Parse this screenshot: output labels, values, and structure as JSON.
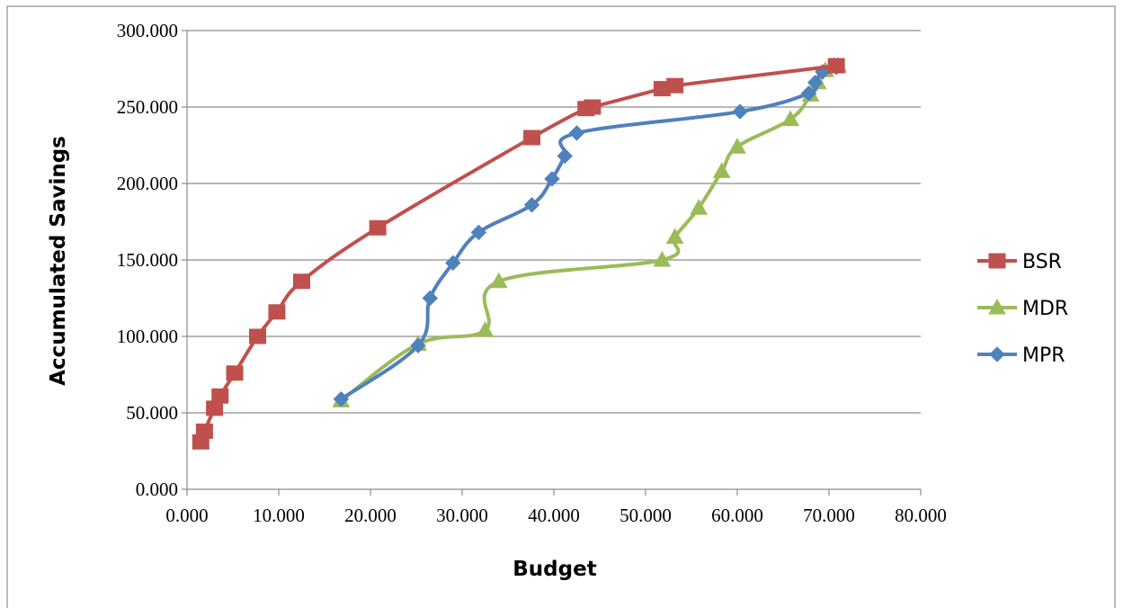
{
  "chart_data": {
    "type": "line",
    "xlabel": "Budget",
    "ylabel": "Accumulated Savings",
    "xlim": [
      0,
      80
    ],
    "ylim": [
      0,
      300
    ],
    "x_ticks": [
      "0.000",
      "10.000",
      "20.000",
      "30.000",
      "40.000",
      "50.000",
      "60.000",
      "70.000",
      "80.000"
    ],
    "y_ticks": [
      "0.000",
      "50.000",
      "100.000",
      "150.000",
      "200.000",
      "250.000",
      "300.000"
    ],
    "grid": "horizontal",
    "legend_position": "right",
    "series": [
      {
        "name": "BSR",
        "color": "#c0504d",
        "marker": "square",
        "points": [
          [
            1.5,
            31
          ],
          [
            1.9,
            38
          ],
          [
            3.0,
            53
          ],
          [
            3.6,
            61
          ],
          [
            5.2,
            76
          ],
          [
            7.7,
            100
          ],
          [
            9.8,
            116
          ],
          [
            12.5,
            136
          ],
          [
            20.8,
            171
          ],
          [
            37.6,
            230
          ],
          [
            43.5,
            249
          ],
          [
            44.2,
            250
          ],
          [
            51.8,
            262
          ],
          [
            53.2,
            264
          ],
          [
            70.8,
            277
          ]
        ]
      },
      {
        "name": "MDR",
        "color": "#9bbb59",
        "marker": "triangle",
        "points": [
          [
            16.8,
            58
          ],
          [
            25.2,
            95
          ],
          [
            32.5,
            104
          ],
          [
            34.0,
            136
          ],
          [
            51.8,
            150
          ],
          [
            53.2,
            165
          ],
          [
            55.8,
            184
          ],
          [
            58.3,
            208
          ],
          [
            60.0,
            224
          ],
          [
            65.8,
            242
          ],
          [
            68.0,
            258
          ],
          [
            68.8,
            266
          ],
          [
            69.6,
            274
          ],
          [
            70.5,
            277
          ],
          [
            71.0,
            277
          ]
        ]
      },
      {
        "name": "MPR",
        "color": "#4f81bd",
        "marker": "diamond",
        "points": [
          [
            16.8,
            59
          ],
          [
            25.2,
            94
          ],
          [
            26.5,
            125
          ],
          [
            29.0,
            148
          ],
          [
            31.8,
            168
          ],
          [
            37.6,
            186
          ],
          [
            39.8,
            203
          ],
          [
            41.2,
            218
          ],
          [
            42.5,
            233
          ],
          [
            60.3,
            247
          ],
          [
            67.8,
            259
          ],
          [
            68.5,
            266
          ],
          [
            69.3,
            273
          ],
          [
            70.8,
            276
          ]
        ]
      }
    ]
  }
}
